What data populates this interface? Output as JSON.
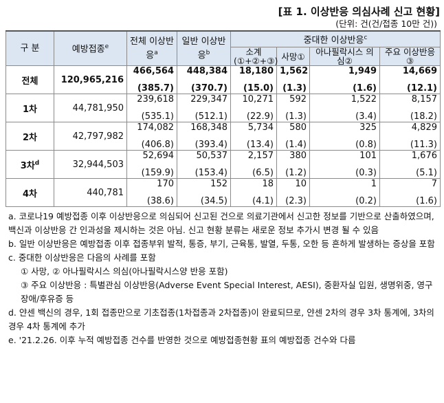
{
  "title": "[표 1. 이상반응 의심사례 신고 현황]",
  "unit": "(단위: 건(건/접종 10만 건))",
  "table": {
    "header": {
      "group": "구 분",
      "doses": {
        "text": "예방접종",
        "sup": "e"
      },
      "total": {
        "text": "전체 이상반응",
        "sup": "a"
      },
      "general": {
        "text": "일반 이상반응",
        "sup": "b"
      },
      "serious": {
        "text": "중대한 이상반응",
        "sup": "c"
      },
      "sub": [
        {
          "text": "소계",
          "note": "(①+②+③)"
        },
        {
          "text": "사망①"
        },
        {
          "text": "아나필락시스 의심②"
        },
        {
          "text": "주요 이상반응③"
        }
      ]
    },
    "rows": [
      {
        "label": "전체",
        "doses": "120,965,216",
        "cells": [
          [
            "466,564",
            "(385.7)"
          ],
          [
            "448,384",
            "(370.7)"
          ],
          [
            "18,180",
            "(15.0)"
          ],
          [
            "1,562",
            "(1.3)"
          ],
          [
            "1,949",
            "(1.6)"
          ],
          [
            "14,669",
            "(12.1)"
          ]
        ]
      },
      {
        "label": "1차",
        "doses": "44,781,950",
        "cells": [
          [
            "239,618",
            "(535.1)"
          ],
          [
            "229,347",
            "(512.1)"
          ],
          [
            "10,271",
            "(22.9)"
          ],
          [
            "592",
            "(1.3)"
          ],
          [
            "1,522",
            "(3.4)"
          ],
          [
            "8,157",
            "(18.2)"
          ]
        ]
      },
      {
        "label": "2차",
        "doses": "42,797,982",
        "cells": [
          [
            "174,082",
            "(406.8)"
          ],
          [
            "168,348",
            "(393.4)"
          ],
          [
            "5,734",
            "(13.4)"
          ],
          [
            "580",
            "(1.4)"
          ],
          [
            "325",
            "(0.8)"
          ],
          [
            "4,829",
            "(11.3)"
          ]
        ]
      },
      {
        "label": "3차",
        "sup": "d",
        "doses": "32,944,503",
        "cells": [
          [
            "52,694",
            "(159.9)"
          ],
          [
            "50,537",
            "(153.4)"
          ],
          [
            "2,157",
            "(6.5)"
          ],
          [
            "380",
            "(1.2)"
          ],
          [
            "101",
            "(0.3)"
          ],
          [
            "1,676",
            "(5.1)"
          ]
        ]
      },
      {
        "label": "4차",
        "doses": "440,781",
        "cells": [
          [
            "170",
            "(38.6)"
          ],
          [
            "152",
            "(34.5)"
          ],
          [
            "18",
            "(4.1)"
          ],
          [
            "10",
            "(2.3)"
          ],
          [
            "1",
            "(0.2)"
          ],
          [
            "7",
            "(1.6)"
          ]
        ]
      }
    ]
  },
  "notes": [
    {
      "text": "a. 코로나19 예방접종 이후 이상반응으로 의심되어 신고된 건으로 의료기관에서 신고한 정보를 기반으로 산출하였으며, 백신과 이상반응 간 인과성을 제시하는 것은 아님. 신고 현황 분류는 새로운 정보 추가시 변경 될 수 있음"
    },
    {
      "text": "b. 일반 이상반응은 예방접종 이후 접종부위 발적, 통증, 부기, 근육통, 발열, 두통, 오한 등 흔하게 발생하는 증상을 포함"
    },
    {
      "text": "c. 중대한 이상반응은 다음의 사례를 포함",
      "items": [
        "① 사망, ② 아나필락시스 의심(아나필락시스양 반응 포함)",
        "③ 주요 이상반응 : 특별관심 이상반응(Adverse Event Special Interest, AESI), 중환자실 입원, 생명위중, 영구장애/후유증 등"
      ]
    },
    {
      "text": "d. 얀센 백신의 경우, 1회 접종만으로 기초접종(1차접종과 2차접종)이 완료되므로, 얀센 2차의 경우 3차 통계에, 3차의 경우 4차 통계에 추가"
    },
    {
      "text": "e. '21.2.26. 이후 누적 예방접종 건수를 반영한 것으로 예방접종현황 표의 예방접종 건수와 다름"
    }
  ]
}
